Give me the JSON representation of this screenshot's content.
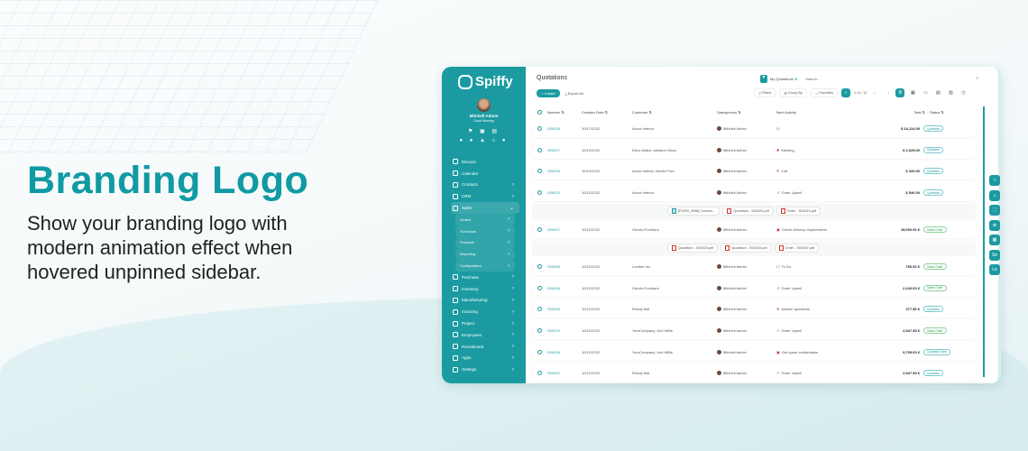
{
  "hero": {
    "title": "Branding Logo",
    "description": "Show your branding logo with modern animation effect when hovered unpinned sidebar."
  },
  "colors": {
    "accent": "#1b9ba1",
    "title": "#109aa3"
  },
  "sidebar": {
    "brand": "Spiffy",
    "user_name": "Mitchell Admin",
    "greeting": "Good Morning",
    "items": [
      {
        "label": "Discuss",
        "icon": "chat-icon"
      },
      {
        "label": "Calendar",
        "icon": "calendar-icon"
      },
      {
        "label": "Contacts",
        "icon": "contacts-icon",
        "chevron": true
      },
      {
        "label": "CRM",
        "icon": "handshake-icon",
        "chevron": true
      },
      {
        "label": "Sales",
        "icon": "chart-icon",
        "open": true
      }
    ],
    "sub_items": [
      "Orders",
      "To Invoice",
      "Products",
      "Reporting",
      "Configuration"
    ],
    "items_after": [
      {
        "label": "Purchase",
        "icon": "purchase-icon"
      },
      {
        "label": "Inventory",
        "icon": "box-icon"
      },
      {
        "label": "Manufacturing",
        "icon": "tools-icon"
      },
      {
        "label": "Invoicing",
        "icon": "invoice-icon"
      },
      {
        "label": "Project",
        "icon": "project-icon"
      },
      {
        "label": "Employees",
        "icon": "employees-icon"
      },
      {
        "label": "Recruitment",
        "icon": "recruit-icon"
      },
      {
        "label": "Apps",
        "icon": "apps-icon"
      },
      {
        "label": "Settings",
        "icon": "gear-icon"
      }
    ]
  },
  "main": {
    "title": "Quotations",
    "create": "+ Create",
    "export": "Export All",
    "facet": "My Quotations",
    "search_placeholder": "Search...",
    "filters": "Filters",
    "group_by": "Group By",
    "favorites": "Favorites",
    "pager": "1-11 / 11",
    "columns": {
      "number": "Number",
      "date": "Creation Date",
      "customer": "Customer",
      "salesperson": "Salesperson",
      "activity": "Next Activity",
      "total": "Total",
      "status": "Status"
    },
    "rows": [
      {
        "type": "row",
        "number": "S00028",
        "date": "10/17/2022",
        "customer": "Azure Interior",
        "salesperson": "Mitchell Admin",
        "activity": "",
        "activity_icon": "clock-icon",
        "total": "$ 24,114.00",
        "status": "Quotation"
      },
      {
        "type": "row",
        "number": "S00027",
        "date": "10/13/2022",
        "customer": "Deco Addict, Addison Olson",
        "salesperson": "Mitchell Admin",
        "activity": "Meeting",
        "activity_icon": "users-icon",
        "total": "$ 2,025.00",
        "status": "Quotation"
      },
      {
        "type": "row",
        "number": "S00026",
        "date": "10/13/2022",
        "customer": "Azure Interior, Nicole Ford",
        "salesperson": "Mitchell Admin",
        "activity": "Call",
        "activity_icon": "phone-icon",
        "total": "$ 320.00",
        "status": "Quotation"
      },
      {
        "type": "row",
        "number": "S00023",
        "date": "10/12/2022",
        "customer": "Azure Interior",
        "salesperson": "Mitchell Admin",
        "activity": "Order Upsell",
        "activity_icon": "trend-icon",
        "total": "$ 546.00",
        "status": "Quotation"
      },
      {
        "type": "attach",
        "files": [
          {
            "name": "[FURN_0096] Customi...",
            "kind": "image"
          },
          {
            "name": "Quotation - S00023.pdf",
            "kind": "pdf"
          },
          {
            "name": "Order - S00015.pdf",
            "kind": "pdf"
          }
        ]
      },
      {
        "type": "row",
        "number": "S00007",
        "date": "10/12/2022",
        "customer": "Gemini Furniture",
        "salesperson": "Mitchell Admin",
        "activity": "Check delivery requirements",
        "activity_icon": "calendar-icon",
        "total": "15,060.00 €",
        "status": "Sales Order"
      },
      {
        "type": "attach",
        "files": [
          {
            "name": "Quotation - S00023.pdf",
            "kind": "pdf"
          },
          {
            "name": "Quotation - S00010.pdf",
            "kind": "pdf"
          },
          {
            "name": "Order - S00007.pdf",
            "kind": "pdf"
          }
        ]
      },
      {
        "type": "row",
        "number": "S00006",
        "date": "10/12/2022",
        "customer": "Lumber Inc",
        "salesperson": "Mitchell Admin",
        "activity": "To Do",
        "activity_icon": "todo-icon",
        "total": "750.00 €",
        "status": "Sales Order"
      },
      {
        "type": "row",
        "number": "S00004",
        "date": "10/12/2022",
        "customer": "Gemini Furniture",
        "salesperson": "Mitchell Admin",
        "activity": "Order Upsell",
        "activity_icon": "trend-icon",
        "total": "2,240.00 €",
        "status": "Sales Order"
      },
      {
        "type": "row",
        "number": "S00003",
        "date": "10/12/2022",
        "customer": "Ready Mat",
        "salesperson": "Mitchell Admin",
        "activity": "Answer questions",
        "activity_icon": "mail-icon",
        "total": "377.50 €",
        "status": "Quotation"
      },
      {
        "type": "row",
        "number": "S00019",
        "date": "10/12/2022",
        "customer": "YourCompany, Joel Willis",
        "salesperson": "Mitchell Admin",
        "activity": "Order Upsell",
        "activity_icon": "trend-icon",
        "total": "2,947.50 €",
        "status": "Sales Order"
      },
      {
        "type": "row",
        "number": "S00018",
        "date": "10/12/2022",
        "customer": "YourCompany, Joel Willis",
        "salesperson": "Mitchell Admin",
        "activity": "Get quote confirmation",
        "activity_icon": "calendar-icon",
        "total": "9,705.00 €",
        "status": "Quotation Sent"
      },
      {
        "type": "row",
        "number": "S00002",
        "date": "10/12/2022",
        "customer": "Ready Mat",
        "salesperson": "Mitchell Admin",
        "activity": "Order Upsell",
        "activity_icon": "trend-icon",
        "total": "2,947.50 €",
        "status": "Quotation"
      }
    ]
  },
  "floating_buttons": [
    "star-icon",
    "search-icon",
    "expand-icon",
    "zoom-icon",
    "grid-icon",
    "Se",
    "Le"
  ]
}
